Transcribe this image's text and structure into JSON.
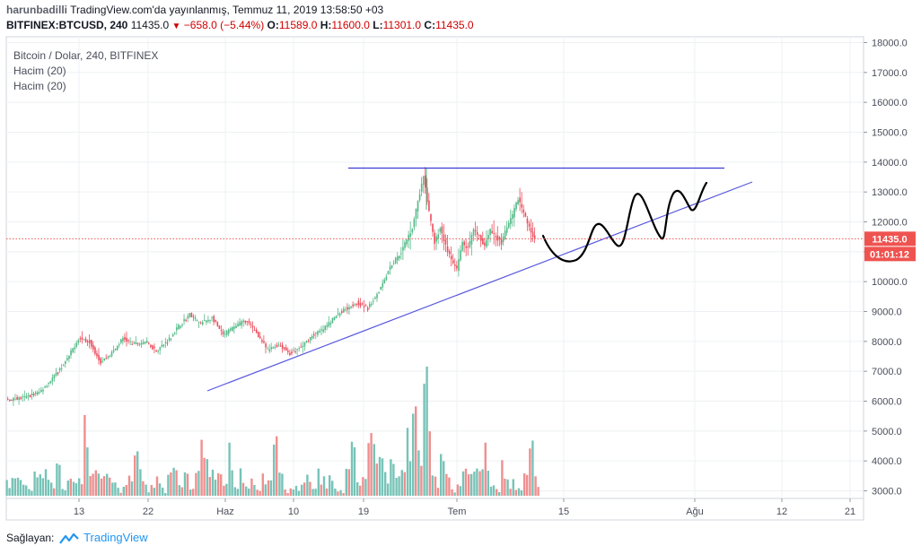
{
  "header": {
    "user": "harunbadilli",
    "published": "TradingView.com'da yayınlanmış, Temmuz 11, 2019 13:58:50 +03",
    "symbol": "BITFINEX:BTCUSD, 240",
    "last": "11435.0",
    "change": "−658.0 (−5.44%)",
    "o_label": "O:",
    "o_value": "11589.0",
    "h_label": "H:",
    "h_value": "11600.0",
    "l_label": "L:",
    "l_value": "11301.0",
    "c_label": "C:",
    "c_value": "11435.0"
  },
  "legend": {
    "title": "Bitcoin / Dolar, 240, BITFINEX",
    "vol1": "Hacim (20)",
    "vol2": "Hacim (20)"
  },
  "footer": {
    "label": "Sağlayan:",
    "brand": "TradingView"
  },
  "colors": {
    "up": "#53b987",
    "down": "#eb4d5c",
    "vol_up": "#77c3b7",
    "vol_down": "#ef8f8f",
    "trend": "#5a5adf",
    "price_badge": "#ef5350",
    "grid": "#eef0f3"
  },
  "chart_data": {
    "type": "candlestick",
    "title": "Bitcoin / Dolar, 240, BITFINEX",
    "ylim": [
      2800,
      18200
    ],
    "y_ticks": [
      "18000.0",
      "17000.0",
      "16000.0",
      "15000.0",
      "14000.0",
      "13000.0",
      "12000.0",
      "11000.0",
      "10000.0",
      "9000.0",
      "8000.0",
      "7000.0",
      "6000.0",
      "5000.0",
      "4000.0",
      "3000.0"
    ],
    "x_ticks": [
      "13",
      "22",
      "Haz",
      "10",
      "19",
      "Tem",
      "15",
      "Ağu",
      "12",
      "21"
    ],
    "current_price": "11435.0",
    "countdown": "01:01:12",
    "price_path": [
      [
        0,
        6050
      ],
      [
        3,
        6100
      ],
      [
        6,
        6300
      ],
      [
        9,
        6900
      ],
      [
        11,
        7400
      ],
      [
        13,
        8100
      ],
      [
        15,
        8000
      ],
      [
        17,
        7300
      ],
      [
        19,
        7600
      ],
      [
        21,
        8100
      ],
      [
        23,
        7900
      ],
      [
        25,
        8000
      ],
      [
        27,
        7700
      ],
      [
        29,
        8000
      ],
      [
        31,
        8500
      ],
      [
        33,
        8900
      ],
      [
        35,
        8600
      ],
      [
        37,
        8800
      ],
      [
        39,
        8200
      ],
      [
        41,
        8500
      ],
      [
        43,
        8700
      ],
      [
        45,
        8300
      ],
      [
        47,
        7700
      ],
      [
        49,
        7900
      ],
      [
        51,
        7600
      ],
      [
        53,
        7800
      ],
      [
        55,
        8200
      ],
      [
        57,
        8400
      ],
      [
        59,
        8800
      ],
      [
        61,
        9100
      ],
      [
        63,
        9300
      ],
      [
        65,
        9100
      ],
      [
        67,
        9700
      ],
      [
        69,
        10500
      ],
      [
        71,
        11000
      ],
      [
        73,
        11800
      ],
      [
        74,
        12700
      ],
      [
        75,
        13500
      ],
      [
        76,
        12300
      ],
      [
        77,
        11300
      ],
      [
        78,
        11800
      ],
      [
        79,
        11200
      ],
      [
        80,
        10700
      ],
      [
        81,
        10400
      ],
      [
        82,
        11300
      ],
      [
        83,
        11100
      ],
      [
        84,
        11700
      ],
      [
        85,
        11500
      ],
      [
        86,
        11200
      ],
      [
        87,
        11700
      ],
      [
        88,
        11500
      ],
      [
        89,
        11300
      ],
      [
        90,
        11800
      ],
      [
        91,
        12200
      ],
      [
        92,
        12800
      ],
      [
        93,
        12300
      ],
      [
        94,
        11800
      ],
      [
        95,
        11435
      ]
    ],
    "resistance_line": {
      "value": 13800
    },
    "support_line": {
      "from": {
        "bar": 36,
        "price": 6300
      },
      "to": {
        "bar": 133,
        "price": 13300
      }
    },
    "volume_hint": "Hacim (20)"
  }
}
